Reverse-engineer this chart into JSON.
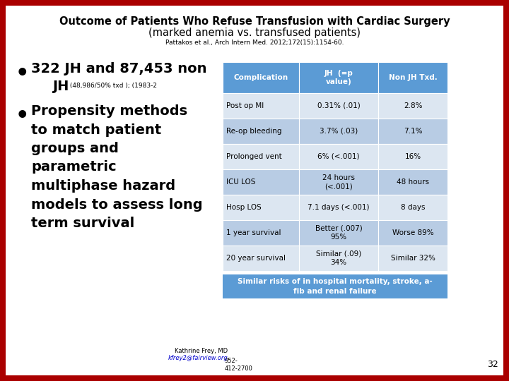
{
  "title_line1": "Outcome of Patients Who Refuse Transfusion with Cardiac Surgery",
  "title_line2": "(marked anemia vs. transfused patients)",
  "citation": "Pattakos et al., Arch Intern Med. 2012;172(15):1154-60.",
  "bullet1_main": "322 JH and 87,453 non",
  "bullet1_sub": "JH",
  "bullet1_sub_small": " (48,986/50% txd ); (1983-2",
  "bullet2": "Propensity methods\nto match patient\ngroups and\nparametric\nmultiphase hazard\nmodels to assess long\nterm survival",
  "table_header": [
    "Complication",
    "JH  (=p\nvalue)",
    "Non JH Txd."
  ],
  "table_rows": [
    [
      "Post op MI",
      "0.31% (.01)",
      "2.8%"
    ],
    [
      "Re-op bleeding",
      "3.7% (.03)",
      "7.1%"
    ],
    [
      "Prolonged vent",
      "6% (<.001)",
      "16%"
    ],
    [
      "ICU LOS",
      "24 hours\n(<.001)",
      "48 hours"
    ],
    [
      "Hosp LOS",
      "7.1 days (<.001)",
      "8 days"
    ],
    [
      "1 year survival",
      "Better (.007)\n95%",
      "Worse 89%"
    ],
    [
      "20 year survival",
      "Similar (.09)\n34%",
      "Similar 32%"
    ]
  ],
  "footer_box_text": "Similar risks of in hospital mortality, stroke, a-\nfib and renal failure",
  "footer_name": "Kathrine Frey, MD",
  "footer_email": "kfrey2@fairview.org",
  "footer_phone": "952-\n412-2700",
  "page_number": "32",
  "bg_color": "#ffffff",
  "border_color": "#aa0000",
  "header_bg": "#5b9bd5",
  "header_text_color": "#ffffff",
  "row_alt1": "#dce6f1",
  "row_alt2": "#b8cce4",
  "footer_box_bg": "#5b9bd5",
  "footer_box_text_color": "#ffffff",
  "title_font_size": 10.5,
  "citation_font_size": 6.5,
  "bullet_font_size": 14,
  "table_font_size": 7.5
}
